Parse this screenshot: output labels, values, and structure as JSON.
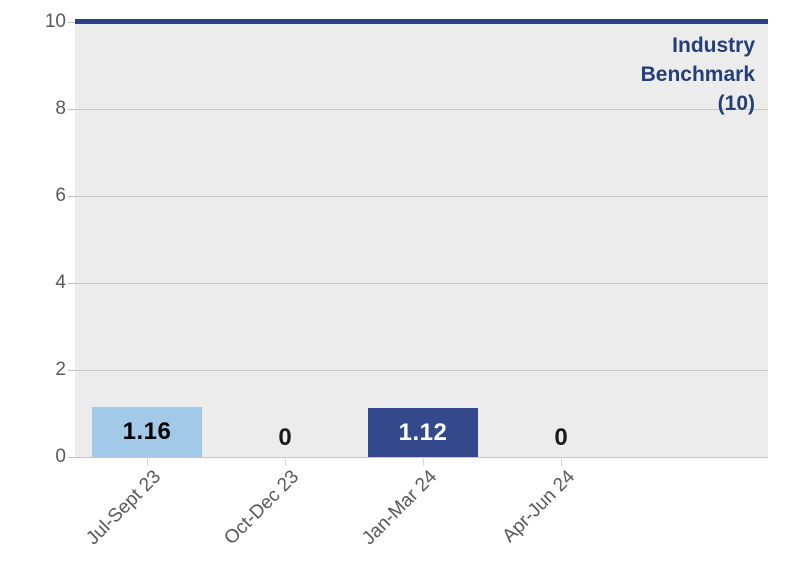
{
  "chart_data": {
    "type": "bar",
    "title": "",
    "xlabel": "",
    "ylabel": "",
    "categories": [
      "Jul-Sept 23",
      "Oct-Dec 23",
      "Jan-Mar 24",
      "Apr-Jun 24"
    ],
    "values": [
      1.16,
      0,
      1.12,
      0
    ],
    "bars": [
      {
        "category": "Jul-Sept 23",
        "value": 1.16,
        "label": "1.16",
        "color": "#A3C9E8",
        "label_color": "#000000"
      },
      {
        "category": "Oct-Dec 23",
        "value": 0,
        "label": "0",
        "color": "",
        "label_color": "#1A1A1A"
      },
      {
        "category": "Jan-Mar 24",
        "value": 1.12,
        "label": "1.12",
        "color": "#33498C",
        "label_color": "#FFFFFF"
      },
      {
        "category": "Apr-Jun 24",
        "value": 0,
        "label": "0",
        "color": "",
        "label_color": "#1A1A1A"
      }
    ],
    "ylim": [
      0,
      10
    ],
    "yticks": [
      "0",
      "2",
      "4",
      "6",
      "8",
      "10"
    ],
    "grid": "horizontal",
    "legend_position": "none",
    "benchmark": {
      "value": 10,
      "label": "Industry Benchmark (10)",
      "label_lines": [
        "Industry",
        "Benchmark",
        "(10)"
      ],
      "line_color": "#2B4087",
      "text_color": "#243E78"
    }
  },
  "colors": {
    "plot_background": "#ECECEC",
    "gridline": "#C6C6C6",
    "axis_text": "#595959",
    "y_tick_mark": "#BFBFBF",
    "x_tick_mark": "#D9D9D9",
    "bar_light_blue": "#A3C9E8",
    "bar_dark_blue": "#33498C"
  }
}
